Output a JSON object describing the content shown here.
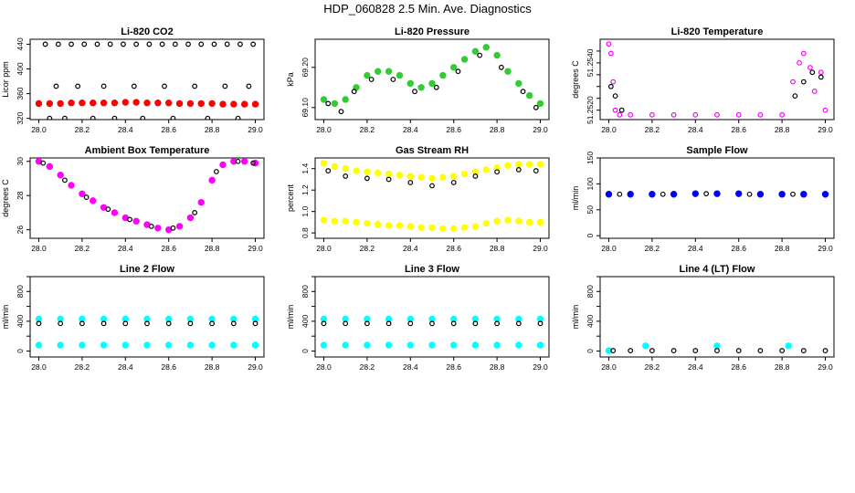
{
  "page": {
    "title": "HDP_060828  2.5 Min. Ave. Diagnostics"
  },
  "chart_data": [
    {
      "type": "scatter",
      "title": "Li-820 CO2",
      "xlabel": "",
      "ylabel": "Licor ppm",
      "xlim": [
        28.0,
        29.0
      ],
      "ylim": [
        318,
        448
      ],
      "xticks": [
        28.0,
        28.2,
        28.4,
        28.6,
        28.8,
        29.0
      ],
      "yticks": [
        320,
        360,
        400,
        440
      ],
      "ytick_labels": [
        "320",
        "360",
        "400",
        "440"
      ],
      "series": [
        {
          "name": "red",
          "color": "#ff0000",
          "marker": "filled",
          "x": [
            28.0,
            28.05,
            28.1,
            28.15,
            28.2,
            28.25,
            28.3,
            28.35,
            28.4,
            28.45,
            28.5,
            28.55,
            28.6,
            28.65,
            28.7,
            28.75,
            28.8,
            28.85,
            28.9,
            28.95,
            29.0
          ],
          "y": [
            344,
            344,
            344,
            345,
            345,
            345,
            345,
            345,
            346,
            346,
            345,
            345,
            345,
            344,
            344,
            344,
            344,
            343,
            343,
            343,
            343
          ]
        },
        {
          "name": "black",
          "color": "#000000",
          "marker": "open",
          "x": [
            28.03,
            28.09,
            28.15,
            28.21,
            28.27,
            28.33,
            28.39,
            28.45,
            28.51,
            28.57,
            28.63,
            28.69,
            28.75,
            28.81,
            28.87,
            28.93,
            28.99,
            28.05,
            28.12,
            28.25,
            28.35,
            28.48,
            28.62,
            28.78,
            28.92,
            28.08,
            28.18,
            28.3,
            28.44,
            28.58,
            28.72,
            28.86,
            28.97
          ],
          "y": [
            440,
            440,
            440,
            440,
            440,
            440,
            440,
            440,
            440,
            440,
            440,
            440,
            440,
            440,
            440,
            440,
            440,
            320,
            320,
            320,
            320,
            320,
            320,
            320,
            320,
            372,
            372,
            372,
            372,
            372,
            372,
            372,
            372
          ]
        }
      ]
    },
    {
      "type": "scatter",
      "title": "Li-820 Pressure",
      "xlabel": "",
      "ylabel": "kPa",
      "xlim": [
        28.0,
        29.0
      ],
      "ylim": [
        69.07,
        69.27
      ],
      "xticks": [
        28.0,
        28.2,
        28.4,
        28.6,
        28.8,
        29.0
      ],
      "yticks": [
        69.1,
        69.2
      ],
      "ytick_labels": [
        "69.10",
        "69.20"
      ],
      "series": [
        {
          "name": "green",
          "color": "#33cc33",
          "marker": "filled",
          "x": [
            28.0,
            28.05,
            28.1,
            28.15,
            28.2,
            28.25,
            28.3,
            28.35,
            28.4,
            28.45,
            28.5,
            28.55,
            28.6,
            28.65,
            28.7,
            28.75,
            28.8,
            28.85,
            28.9,
            28.95,
            29.0
          ],
          "y": [
            69.12,
            69.11,
            69.12,
            69.15,
            69.18,
            69.19,
            69.19,
            69.18,
            69.16,
            69.15,
            69.16,
            69.18,
            69.2,
            69.22,
            69.24,
            69.25,
            69.23,
            69.19,
            69.16,
            69.13,
            69.11
          ]
        },
        {
          "name": "black",
          "color": "#000000",
          "marker": "open",
          "x": [
            28.02,
            28.08,
            28.14,
            28.22,
            28.32,
            28.42,
            28.52,
            28.62,
            28.72,
            28.82,
            28.92,
            28.98
          ],
          "y": [
            69.11,
            69.09,
            69.14,
            69.17,
            69.17,
            69.14,
            69.15,
            69.19,
            69.23,
            69.2,
            69.14,
            69.1
          ]
        }
      ]
    },
    {
      "type": "scatter",
      "title": "Li-820 Temperature",
      "xlabel": "",
      "ylabel": "degrees C",
      "xlim": [
        28.0,
        29.0
      ],
      "ylim": [
        51.2516,
        51.255
      ],
      "xticks": [
        28.0,
        28.2,
        28.4,
        28.6,
        28.8,
        29.0
      ],
      "yticks": [
        51.252,
        51.2525,
        51.253,
        51.2535,
        51.254,
        51.2545
      ],
      "ytick_labels": [
        "51.2520",
        "",
        "",
        "",
        "51.2540",
        ""
      ],
      "series": [
        {
          "name": "magenta",
          "color": "#ff00ff",
          "marker": "open",
          "x": [
            28.0,
            28.01,
            28.02,
            28.03,
            28.05,
            28.1,
            28.2,
            28.3,
            28.4,
            28.5,
            28.6,
            28.7,
            28.8,
            28.85,
            28.88,
            28.9,
            28.93,
            28.95,
            28.98,
            29.0
          ],
          "y": [
            51.2548,
            51.2544,
            51.2532,
            51.252,
            51.2518,
            51.2518,
            51.2518,
            51.2518,
            51.2518,
            51.2518,
            51.2518,
            51.2518,
            51.2518,
            51.2532,
            51.254,
            51.2544,
            51.2538,
            51.2528,
            51.2536,
            51.252
          ]
        },
        {
          "name": "black",
          "color": "#000000",
          "marker": "open",
          "x": [
            28.01,
            28.03,
            28.06,
            28.86,
            28.9,
            28.94,
            28.98
          ],
          "y": [
            51.253,
            51.2526,
            51.252,
            51.2526,
            51.2532,
            51.2536,
            51.2534
          ]
        }
      ]
    },
    {
      "type": "scatter",
      "title": "Ambient Box Temperature",
      "xlabel": "",
      "ylabel": "degrees C",
      "xlim": [
        28.0,
        29.0
      ],
      "ylim": [
        25.5,
        30.2
      ],
      "xticks": [
        28.0,
        28.2,
        28.4,
        28.6,
        28.8,
        29.0
      ],
      "yticks": [
        26,
        28,
        30
      ],
      "ytick_labels": [
        "26",
        "28",
        "30"
      ],
      "series": [
        {
          "name": "magenta",
          "color": "#ff00ff",
          "marker": "filled",
          "x": [
            28.0,
            28.05,
            28.1,
            28.15,
            28.2,
            28.25,
            28.3,
            28.35,
            28.4,
            28.45,
            28.5,
            28.55,
            28.6,
            28.65,
            28.7,
            28.75,
            28.8,
            28.85,
            28.9,
            28.95,
            29.0
          ],
          "y": [
            30.0,
            29.7,
            29.2,
            28.6,
            28.1,
            27.7,
            27.3,
            27.0,
            26.7,
            26.5,
            26.3,
            26.1,
            26.0,
            26.2,
            26.7,
            27.6,
            28.9,
            29.8,
            30.0,
            30.0,
            29.9
          ]
        },
        {
          "name": "black",
          "color": "#000000",
          "marker": "open",
          "x": [
            28.02,
            28.12,
            28.22,
            28.32,
            28.42,
            28.52,
            28.62,
            28.72,
            28.82,
            28.92,
            28.99
          ],
          "y": [
            29.9,
            28.9,
            27.9,
            27.2,
            26.6,
            26.2,
            26.1,
            27.0,
            29.4,
            30.0,
            29.9
          ]
        }
      ]
    },
    {
      "type": "scatter",
      "title": "Gas Stream RH",
      "xlabel": "",
      "ylabel": "percent",
      "xlim": [
        28.0,
        29.0
      ],
      "ylim": [
        0.75,
        1.5
      ],
      "xticks": [
        28.0,
        28.2,
        28.4,
        28.6,
        28.8,
        29.0
      ],
      "yticks": [
        0.8,
        1.0,
        1.2,
        1.4
      ],
      "ytick_labels": [
        "0.8",
        "1.0",
        "1.2",
        "1.4"
      ],
      "series": [
        {
          "name": "yellow-high",
          "color": "#ffff00",
          "marker": "filled",
          "x": [
            28.0,
            28.05,
            28.1,
            28.15,
            28.2,
            28.25,
            28.3,
            28.35,
            28.4,
            28.45,
            28.5,
            28.55,
            28.6,
            28.65,
            28.7,
            28.75,
            28.8,
            28.85,
            28.9,
            28.95,
            29.0
          ],
          "y": [
            1.45,
            1.42,
            1.4,
            1.38,
            1.37,
            1.36,
            1.35,
            1.34,
            1.33,
            1.32,
            1.31,
            1.32,
            1.33,
            1.35,
            1.37,
            1.39,
            1.41,
            1.43,
            1.44,
            1.44,
            1.44
          ]
        },
        {
          "name": "yellow-low",
          "color": "#ffff00",
          "marker": "filled",
          "x": [
            28.0,
            28.05,
            28.1,
            28.15,
            28.2,
            28.25,
            28.3,
            28.35,
            28.4,
            28.45,
            28.5,
            28.55,
            28.6,
            28.65,
            28.7,
            28.75,
            28.8,
            28.85,
            28.9,
            28.95,
            29.0
          ],
          "y": [
            0.92,
            0.91,
            0.91,
            0.9,
            0.89,
            0.88,
            0.87,
            0.87,
            0.86,
            0.85,
            0.85,
            0.84,
            0.84,
            0.85,
            0.86,
            0.89,
            0.91,
            0.92,
            0.91,
            0.9,
            0.9
          ]
        },
        {
          "name": "black",
          "color": "#000000",
          "marker": "open",
          "x": [
            28.02,
            28.1,
            28.2,
            28.3,
            28.4,
            28.5,
            28.6,
            28.7,
            28.8,
            28.9,
            28.98
          ],
          "y": [
            1.38,
            1.33,
            1.31,
            1.3,
            1.27,
            1.24,
            1.27,
            1.33,
            1.37,
            1.39,
            1.38
          ]
        }
      ]
    },
    {
      "type": "scatter",
      "title": "Sample Flow",
      "xlabel": "",
      "ylabel": "ml/min",
      "xlim": [
        28.0,
        29.0
      ],
      "ylim": [
        -5,
        150
      ],
      "xticks": [
        28.0,
        28.2,
        28.4,
        28.6,
        28.8,
        29.0
      ],
      "yticks": [
        0,
        50,
        100,
        150
      ],
      "ytick_labels": [
        "0",
        "50",
        "100",
        "150"
      ],
      "series": [
        {
          "name": "blue",
          "color": "#0000ff",
          "marker": "filled",
          "x": [
            28.0,
            28.1,
            28.2,
            28.3,
            28.4,
            28.5,
            28.6,
            28.7,
            28.8,
            28.9,
            29.0
          ],
          "y": [
            80,
            80,
            80,
            80,
            81,
            81,
            81,
            80,
            80,
            80,
            80
          ]
        },
        {
          "name": "black",
          "color": "#000000",
          "marker": "open",
          "x": [
            28.05,
            28.25,
            28.45,
            28.65,
            28.85
          ],
          "y": [
            80,
            80,
            81,
            80,
            80
          ]
        }
      ]
    },
    {
      "type": "scatter",
      "title": "Line 2 Flow",
      "xlabel": "",
      "ylabel": "ml/min",
      "xlim": [
        28.0,
        29.0
      ],
      "ylim": [
        -80,
        1000
      ],
      "xticks": [
        28.0,
        28.2,
        28.4,
        28.6,
        28.8,
        29.0
      ],
      "yticks": [
        0,
        200,
        400,
        600,
        800,
        1000
      ],
      "ytick_labels": [
        "0",
        "",
        "400",
        "",
        "800",
        ""
      ],
      "series": [
        {
          "name": "cyan-high",
          "color": "#00ffff",
          "marker": "filled",
          "x": [
            28.0,
            28.1,
            28.2,
            28.3,
            28.4,
            28.5,
            28.6,
            28.7,
            28.8,
            28.9,
            29.0
          ],
          "y": [
            430,
            430,
            430,
            430,
            430,
            430,
            430,
            430,
            430,
            430,
            430
          ]
        },
        {
          "name": "cyan-low",
          "color": "#00ffff",
          "marker": "filled",
          "x": [
            28.0,
            28.1,
            28.2,
            28.3,
            28.4,
            28.5,
            28.6,
            28.7,
            28.8,
            28.9,
            29.0
          ],
          "y": [
            80,
            80,
            80,
            80,
            80,
            80,
            80,
            80,
            80,
            80,
            80
          ]
        },
        {
          "name": "black",
          "color": "#000000",
          "marker": "open",
          "x": [
            28.0,
            28.1,
            28.2,
            28.3,
            28.4,
            28.5,
            28.6,
            28.7,
            28.8,
            28.9,
            29.0
          ],
          "y": [
            370,
            370,
            370,
            370,
            370,
            370,
            370,
            370,
            370,
            370,
            370
          ]
        }
      ]
    },
    {
      "type": "scatter",
      "title": "Line 3 Flow",
      "xlabel": "",
      "ylabel": "ml/min",
      "xlim": [
        28.0,
        29.0
      ],
      "ylim": [
        -80,
        1000
      ],
      "xticks": [
        28.0,
        28.2,
        28.4,
        28.6,
        28.8,
        29.0
      ],
      "yticks": [
        0,
        200,
        400,
        600,
        800,
        1000
      ],
      "ytick_labels": [
        "0",
        "",
        "400",
        "",
        "800",
        ""
      ],
      "series": [
        {
          "name": "cyan-high",
          "color": "#00ffff",
          "marker": "filled",
          "x": [
            28.0,
            28.1,
            28.2,
            28.3,
            28.4,
            28.5,
            28.6,
            28.7,
            28.8,
            28.9,
            29.0
          ],
          "y": [
            430,
            430,
            430,
            430,
            430,
            430,
            430,
            430,
            430,
            430,
            430
          ]
        },
        {
          "name": "cyan-low",
          "color": "#00ffff",
          "marker": "filled",
          "x": [
            28.0,
            28.1,
            28.2,
            28.3,
            28.4,
            28.5,
            28.6,
            28.7,
            28.8,
            28.9,
            29.0
          ],
          "y": [
            80,
            80,
            80,
            80,
            80,
            80,
            80,
            80,
            80,
            80,
            80
          ]
        },
        {
          "name": "black",
          "color": "#000000",
          "marker": "open",
          "x": [
            28.0,
            28.1,
            28.2,
            28.3,
            28.4,
            28.5,
            28.6,
            28.7,
            28.8,
            28.9,
            29.0
          ],
          "y": [
            370,
            370,
            370,
            370,
            370,
            370,
            370,
            370,
            370,
            370,
            370
          ]
        }
      ]
    },
    {
      "type": "scatter",
      "title": "Line 4 (LT) Flow",
      "xlabel": "",
      "ylabel": "ml/min",
      "xlim": [
        28.0,
        29.0
      ],
      "ylim": [
        -80,
        1000
      ],
      "xticks": [
        28.0,
        28.2,
        28.4,
        28.6,
        28.8,
        29.0
      ],
      "yticks": [
        0,
        200,
        400,
        600,
        800,
        1000
      ],
      "ytick_labels": [
        "0",
        "",
        "400",
        "",
        "800",
        ""
      ],
      "series": [
        {
          "name": "cyan",
          "color": "#00ffff",
          "marker": "filled",
          "x": [
            28.0,
            28.17,
            28.5,
            28.83
          ],
          "y": [
            5,
            70,
            70,
            70
          ]
        },
        {
          "name": "black",
          "color": "#000000",
          "marker": "open",
          "x": [
            28.02,
            28.1,
            28.2,
            28.3,
            28.4,
            28.5,
            28.6,
            28.7,
            28.8,
            28.9,
            29.0
          ],
          "y": [
            5,
            5,
            5,
            5,
            5,
            5,
            5,
            5,
            5,
            5,
            5
          ]
        }
      ]
    }
  ]
}
